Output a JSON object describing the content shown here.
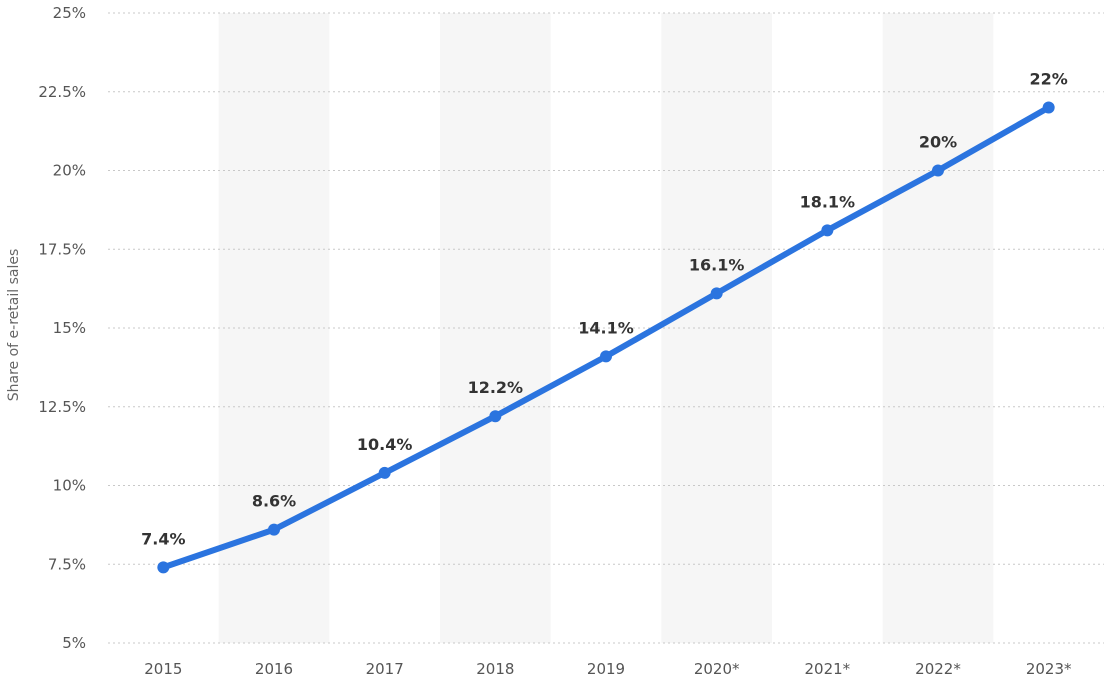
{
  "chart_data": {
    "type": "line",
    "categories": [
      "2015",
      "2016",
      "2017",
      "2018",
      "2019",
      "2020*",
      "2021*",
      "2022*",
      "2023*"
    ],
    "series": [
      {
        "values": [
          7.4,
          8.6,
          10.4,
          12.2,
          14.1,
          16.1,
          18.1,
          20,
          22
        ],
        "data_labels": [
          "7.4%",
          "8.6%",
          "10.4%",
          "12.2%",
          "14.1%",
          "16.1%",
          "18.1%",
          "20%",
          "22%"
        ],
        "color": "#2b74df"
      }
    ],
    "title": "",
    "xlabel": "",
    "ylabel": "Share of e-retail sales",
    "ylim": [
      5,
      25
    ],
    "yticks": [
      5,
      7.5,
      10,
      12.5,
      15,
      17.5,
      20,
      22.5,
      25
    ],
    "ytick_labels": [
      "5%",
      "7.5%",
      "10%",
      "12.5%",
      "15%",
      "17.5%",
      "20%",
      "22.5%",
      "25%"
    ],
    "grid": true,
    "alternating_column_shading": true,
    "legend": "none"
  }
}
